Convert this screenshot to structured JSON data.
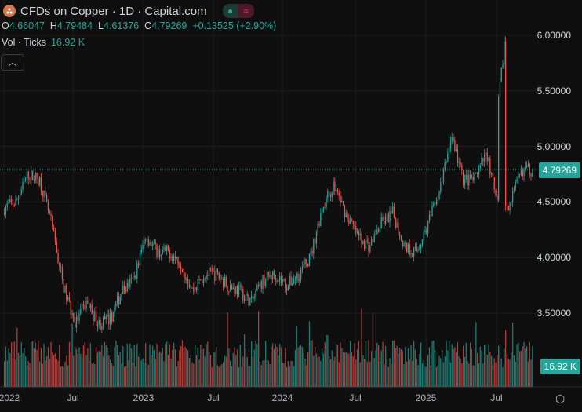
{
  "header": {
    "title": "CFDs on Copper · 1D · Capital.com",
    "open_label": "O",
    "open": "4.66047",
    "high_label": "H",
    "high": "4.79484",
    "low_label": "L",
    "low": "4.61376",
    "close_label": "C",
    "close": "4.79269",
    "change": "+0.13525 (+2.90%)",
    "volume_label": "Vol · Ticks",
    "volume": "16.92 K",
    "collapse_icon": "chevron-up-icon"
  },
  "colors": {
    "up": "#26a69a",
    "down": "#ef5350",
    "background": "#0f0f0f"
  },
  "price_tag": "4.79269",
  "volume_tag": "16.92 K",
  "chart_data": {
    "type": "candlestick",
    "x_ticks": [
      "2022",
      "Jul",
      "2023",
      "Jul",
      "2024",
      "Jul",
      "2025",
      "Jul"
    ],
    "y_ticks": [
      "6.00000",
      "5.50000",
      "5.00000",
      "4.50000",
      "4.00000",
      "3.50000"
    ],
    "ylim": [
      3.3,
      6.05
    ],
    "grid": true,
    "monthly_close_approx": {
      "dates": [
        "2022-01",
        "2022-02",
        "2022-03",
        "2022-04",
        "2022-05",
        "2022-06",
        "2022-07",
        "2022-08",
        "2022-09",
        "2022-10",
        "2022-11",
        "2022-12",
        "2023-01",
        "2023-02",
        "2023-03",
        "2023-04",
        "2023-05",
        "2023-06",
        "2023-07",
        "2023-08",
        "2023-09",
        "2023-10",
        "2023-11",
        "2023-12",
        "2024-01",
        "2024-02",
        "2024-03",
        "2024-04",
        "2024-05",
        "2024-06",
        "2024-07",
        "2024-08",
        "2024-09",
        "2024-10",
        "2024-11",
        "2024-12",
        "2025-01",
        "2025-02",
        "2025-03",
        "2025-04",
        "2025-05",
        "2025-06",
        "2025-07",
        "2025-08",
        "2025-09"
      ],
      "values": [
        4.45,
        4.5,
        4.75,
        4.7,
        4.3,
        3.75,
        3.4,
        3.6,
        3.4,
        3.45,
        3.7,
        3.8,
        4.2,
        4.05,
        4.05,
        3.95,
        3.7,
        3.85,
        3.85,
        3.75,
        3.7,
        3.6,
        3.8,
        3.85,
        3.75,
        3.85,
        4.0,
        4.45,
        4.65,
        4.4,
        4.2,
        4.1,
        4.3,
        4.4,
        4.1,
        4.05,
        4.3,
        4.6,
        5.1,
        4.7,
        4.7,
        4.95,
        4.4,
        4.5,
        4.79
      ]
    },
    "notable": {
      "high": 5.95,
      "high_date": "2025-07",
      "last": 4.79269
    }
  }
}
